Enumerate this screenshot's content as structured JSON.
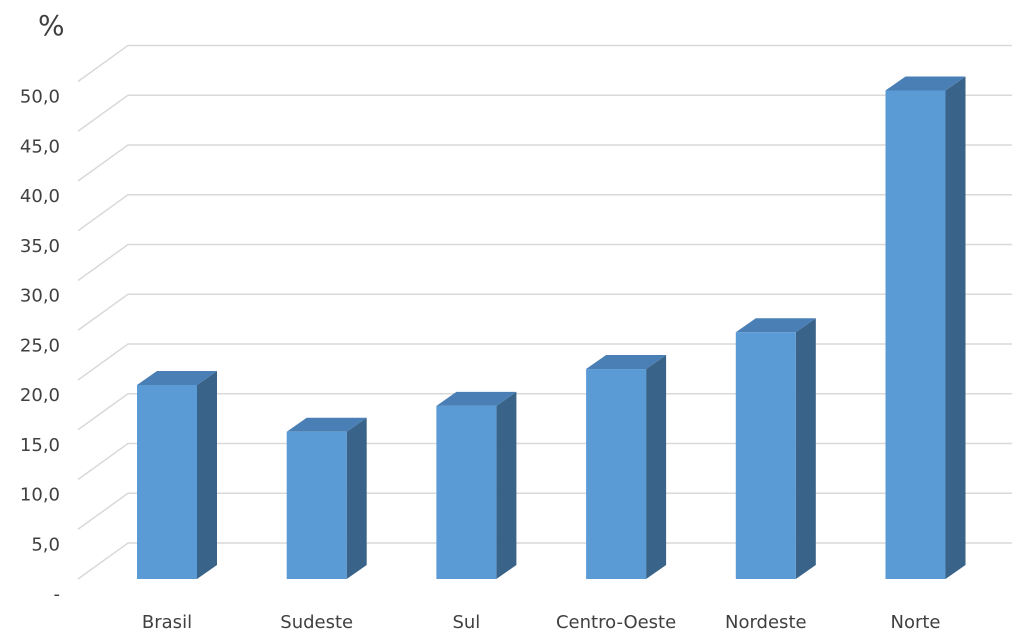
{
  "chart_data": {
    "type": "bar",
    "style": "3d-column",
    "unit_label": "%",
    "categories": [
      "Brasil",
      "Sudeste",
      "Sul",
      "Centro-Oeste",
      "Nordeste",
      "Norte"
    ],
    "values": [
      19.5,
      14.8,
      17.4,
      21.1,
      24.8,
      49.1
    ],
    "ylim": [
      0,
      50
    ],
    "yticks": [
      0,
      5,
      10,
      15,
      20,
      25,
      30,
      35,
      40,
      45,
      50
    ],
    "ytick_labels": [
      "-",
      "5,0",
      "10,0",
      "15,0",
      "20,0",
      "25,0",
      "30,0",
      "35,0",
      "40,0",
      "45,0",
      "50,0"
    ],
    "grid": true,
    "legend": "none",
    "colors": {
      "front": "#5b9bd5",
      "top": "#4a7fb5",
      "side": "#3a6389",
      "grid": "#d9d9d9",
      "text": "#404040"
    }
  }
}
